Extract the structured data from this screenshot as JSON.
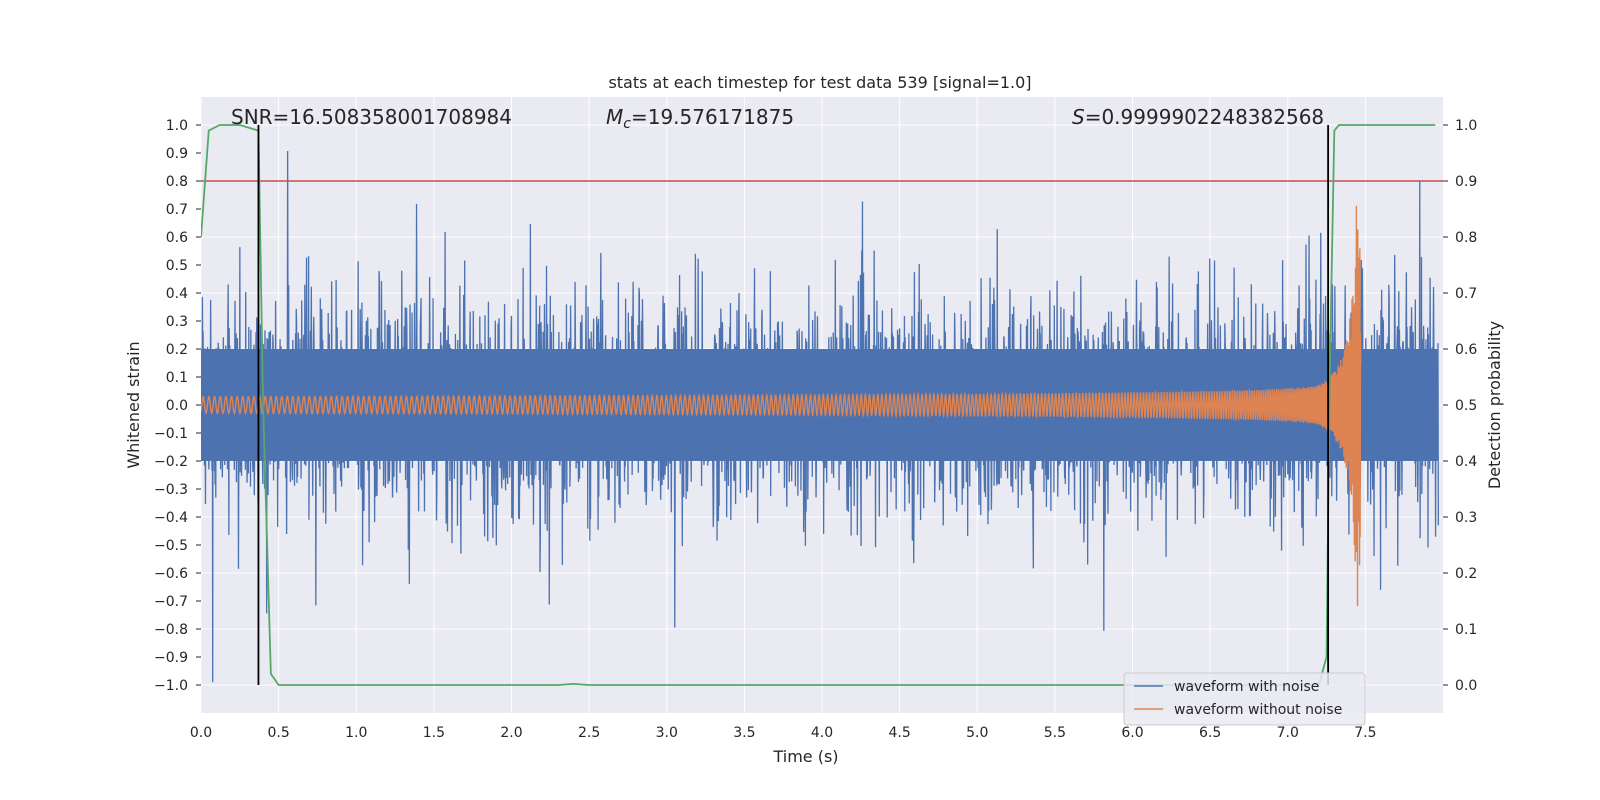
{
  "chart_data": {
    "type": "line",
    "title": "stats at each timestep for test data 539 [signal=1.0]",
    "xlabel": "Time (s)",
    "ylabel": "Whitened strain",
    "ylabel_right": "Detection probability",
    "xlim": [
      0.0,
      8.0
    ],
    "ylim": [
      -1.1,
      1.1
    ],
    "ylim_right": [
      -0.05,
      1.05
    ],
    "xticks": [
      "0.0",
      "0.5",
      "1.0",
      "1.5",
      "2.0",
      "2.5",
      "3.0",
      "3.5",
      "4.0",
      "4.5",
      "5.0",
      "5.5",
      "6.0",
      "6.5",
      "7.0",
      "7.5"
    ],
    "yticks": [
      "−1.0",
      "−0.9",
      "−0.8",
      "−0.7",
      "−0.6",
      "−0.5",
      "−0.4",
      "−0.3",
      "−0.2",
      "−0.1",
      "0.0",
      "0.1",
      "0.2",
      "0.3",
      "0.4",
      "0.5",
      "0.6",
      "0.7",
      "0.8",
      "0.9",
      "1.0"
    ],
    "yticks_right": [
      "0.0",
      "0.1",
      "0.2",
      "0.3",
      "0.4",
      "0.5",
      "0.6",
      "0.7",
      "0.8",
      "0.9",
      "1.0"
    ],
    "annotations": {
      "snr": "SNR=16.508358001708984",
      "mc_symbol": "M",
      "mc_sub": "c",
      "mc_value": "=19.576171875",
      "s_symbol": "S",
      "s_value": "=0.9999902248382568"
    },
    "series": [
      {
        "name": "waveform with noise",
        "color": "#4c72b0",
        "note": "whitened noise, peaks roughly ±0.4 to ±1.0"
      },
      {
        "name": "waveform without noise",
        "color": "#dd8452",
        "note": "chirp, amplitude growing to ~0.7 near t=7.47 s"
      },
      {
        "name": "detection probability",
        "color": "#55a868",
        "x": [
          0.0,
          0.05,
          0.12,
          0.25,
          0.37,
          0.4,
          0.45,
          0.5,
          2.3,
          2.4,
          2.5,
          7.2,
          7.25,
          7.27,
          7.3,
          7.33,
          7.4,
          7.5,
          7.95
        ],
        "values": [
          0.8,
          0.99,
          1.0,
          1.0,
          0.99,
          0.5,
          0.02,
          0.0,
          0.0,
          0.002,
          0.0,
          0.0,
          0.05,
          0.55,
          0.99,
          1.0,
          1.0,
          1.0,
          1.0
        ]
      }
    ],
    "hlines": [
      {
        "y": 0.8,
        "color": "#c44e52",
        "axis": "left"
      }
    ],
    "vlines": [
      {
        "x": 0.37,
        "color": "#000000"
      },
      {
        "x": 7.26,
        "color": "#000000"
      }
    ],
    "legend": {
      "placement": "lower-right",
      "entries": [
        "waveform with noise",
        "waveform without noise"
      ]
    },
    "grid": true
  }
}
